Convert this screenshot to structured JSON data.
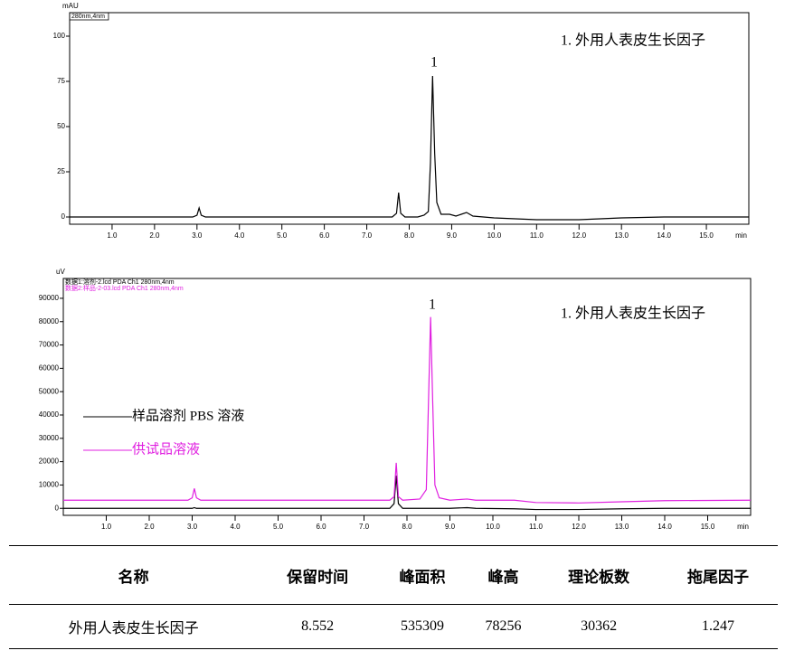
{
  "chart_data": [
    {
      "type": "line",
      "y_label": "mAU",
      "x_label": "min",
      "xlim": [
        0,
        16
      ],
      "ylim": [
        -4,
        113
      ],
      "xticks": [
        {
          "value": 1,
          "label": "1.0"
        },
        {
          "value": 2,
          "label": "2.0"
        },
        {
          "value": 3,
          "label": "3.0"
        },
        {
          "value": 4,
          "label": "4.0"
        },
        {
          "value": 5,
          "label": "5.0"
        },
        {
          "value": 6,
          "label": "6.0"
        },
        {
          "value": 7,
          "label": "7.0"
        },
        {
          "value": 8,
          "label": "8.0"
        },
        {
          "value": 9,
          "label": "9.0"
        },
        {
          "value": 10,
          "label": "10.0"
        },
        {
          "value": 11,
          "label": "11.0"
        },
        {
          "value": 12,
          "label": "12.0"
        },
        {
          "value": 13,
          "label": "13.0"
        },
        {
          "value": 14,
          "label": "14.0"
        },
        {
          "value": 15,
          "label": "15.0"
        }
      ],
      "yticks": [
        0,
        25,
        50,
        75,
        100
      ],
      "x": [
        0,
        2.9,
        3,
        3.05,
        3.1,
        3.2,
        7.6,
        7.7,
        7.75,
        7.8,
        7.9,
        8.2,
        8.35,
        8.45,
        8.5,
        8.55,
        8.6,
        8.65,
        8.75,
        8.95,
        9.1,
        9.35,
        9.5,
        10,
        10.5,
        11,
        12,
        13,
        14,
        16
      ],
      "series": [
        {
          "name": "280nm,4nm",
          "color": "#000000",
          "values": [
            0,
            0,
            1,
            5,
            1,
            0,
            0,
            2,
            13.5,
            2,
            0,
            0,
            1,
            3,
            30,
            78,
            35,
            8,
            1.5,
            1.5,
            0.5,
            2.5,
            0.5,
            -0.5,
            -1,
            -1.5,
            -1.5,
            -0.5,
            0,
            0
          ]
        }
      ],
      "annotations": [
        {
          "text": "1. 外用人表皮生长因子",
          "color": "#000000"
        },
        {
          "text": "1",
          "color": "#000000"
        }
      ]
    },
    {
      "type": "line",
      "y_label": "uV",
      "x_label": "min",
      "xlim": [
        0,
        16
      ],
      "ylim": [
        -3000,
        98500
      ],
      "xticks": [
        {
          "value": 1,
          "label": "1.0"
        },
        {
          "value": 2,
          "label": "2.0"
        },
        {
          "value": 3,
          "label": "3.0"
        },
        {
          "value": 4,
          "label": "4.0"
        },
        {
          "value": 5,
          "label": "5.0"
        },
        {
          "value": 6,
          "label": "6.0"
        },
        {
          "value": 7,
          "label": "7.0"
        },
        {
          "value": 8,
          "label": "8.0"
        },
        {
          "value": 9,
          "label": "9.0"
        },
        {
          "value": 10,
          "label": "10.0"
        },
        {
          "value": 11,
          "label": "11.0"
        },
        {
          "value": 12,
          "label": "12.0"
        },
        {
          "value": 13,
          "label": "13.0"
        },
        {
          "value": 14,
          "label": "14.0"
        },
        {
          "value": 15,
          "label": "15.0"
        }
      ],
      "yticks": [
        0,
        10000,
        20000,
        30000,
        40000,
        50000,
        60000,
        70000,
        80000,
        90000
      ],
      "x": [
        0,
        2.9,
        3.0,
        3.05,
        3.1,
        3.2,
        7.6,
        7.7,
        7.75,
        7.8,
        7.9,
        8.3,
        8.45,
        8.5,
        8.55,
        8.6,
        8.65,
        8.75,
        9.0,
        9.4,
        9.6,
        10.5,
        11.0,
        12.0,
        13.0,
        14.0,
        16.0
      ],
      "series": [
        {
          "name": "数据1:溶剂-2.lcd PDA Ch1 280nm,4nm",
          "color": "#000000",
          "values": [
            0,
            0,
            0,
            300,
            0,
            0,
            0,
            2000,
            14000,
            2000,
            0,
            0,
            0,
            0,
            0,
            0,
            0,
            0,
            0,
            300,
            0,
            -200,
            -500,
            -500,
            -200,
            0,
            0
          ]
        },
        {
          "name": "数据2:样品-2-03.lcd PDA Ch1 280nm,4nm",
          "color": "#e020e0",
          "values": [
            3500,
            3500,
            4500,
            8500,
            4500,
            3500,
            3500,
            5000,
            19500,
            5000,
            3500,
            4000,
            8000,
            45000,
            82000,
            45000,
            10000,
            4500,
            3500,
            4000,
            3500,
            3500,
            2500,
            2300,
            2800,
            3300,
            3500
          ]
        }
      ],
      "annotations": [
        {
          "text": "1. 外用人表皮生长因子",
          "color": "#000000"
        },
        {
          "text": "1",
          "color": "#000000"
        },
        {
          "text": "样品溶剂 PBS 溶液",
          "color": "#000000"
        },
        {
          "text": "供试品溶液",
          "color": "#e020e0"
        }
      ]
    }
  ],
  "table": {
    "header": [
      "名称",
      "保留时间",
      "峰面积",
      "峰高",
      "理论板数",
      "拖尾因子"
    ],
    "rows": [
      [
        "外用人表皮生长因子",
        "8.552",
        "535309",
        "78256",
        "30362",
        "1.247"
      ]
    ]
  }
}
